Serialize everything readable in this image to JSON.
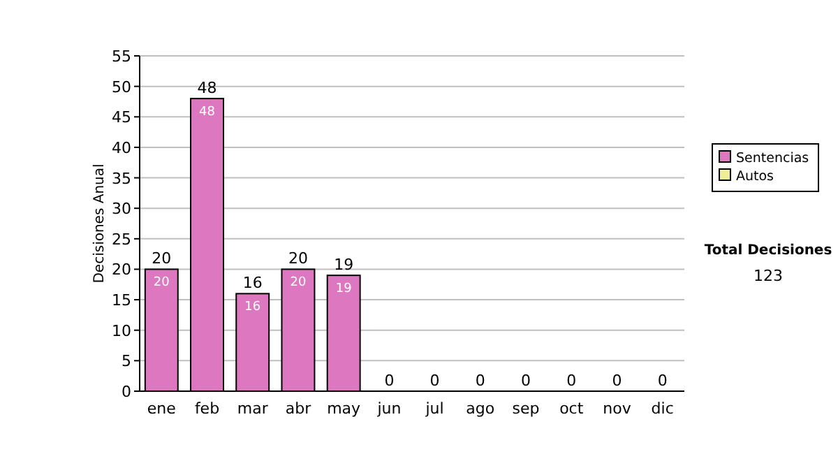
{
  "chart_data": {
    "type": "bar",
    "ylabel": "Decisiones Anual",
    "categories": [
      "ene",
      "feb",
      "mar",
      "abr",
      "may",
      "jun",
      "jul",
      "ago",
      "sep",
      "oct",
      "nov",
      "dic"
    ],
    "series": [
      {
        "name": "Sentencias",
        "color": "#dd77c0",
        "values": [
          20,
          48,
          16,
          20,
          19,
          0,
          0,
          0,
          0,
          0,
          0,
          0
        ],
        "value_labels": [
          "20",
          "48",
          "16",
          "20",
          "19",
          null,
          null,
          null,
          null,
          null,
          null,
          null
        ]
      },
      {
        "name": "Autos",
        "color": "#eeee99",
        "values": [
          0,
          0,
          0,
          0,
          0,
          0,
          0,
          0,
          0,
          0,
          0,
          0
        ]
      }
    ],
    "stacked": true,
    "totals": [
      "20",
      "48",
      "16",
      "20",
      "19",
      "0",
      "0",
      "0",
      "0",
      "0",
      "0",
      "0"
    ],
    "ylim": [
      0,
      55
    ],
    "yticks": [
      0,
      5,
      10,
      15,
      20,
      25,
      30,
      35,
      40,
      45,
      50,
      55
    ],
    "grid": "y",
    "legend": "right",
    "annotations": [
      "Total Decisiones",
      "123"
    ]
  }
}
